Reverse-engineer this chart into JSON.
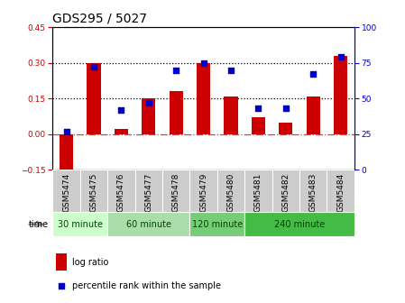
{
  "title": "GDS295 / 5027",
  "samples": [
    "GSM5474",
    "GSM5475",
    "GSM5476",
    "GSM5477",
    "GSM5478",
    "GSM5479",
    "GSM5480",
    "GSM5481",
    "GSM5482",
    "GSM5483",
    "GSM5484"
  ],
  "log_ratio": [
    -0.18,
    0.3,
    0.02,
    0.15,
    0.18,
    0.3,
    0.16,
    0.07,
    0.05,
    0.16,
    0.33
  ],
  "percentile": [
    27,
    72,
    42,
    47,
    70,
    75,
    70,
    43,
    43,
    67,
    79
  ],
  "ylim_left": [
    -0.15,
    0.45
  ],
  "ylim_right": [
    0,
    100
  ],
  "yticks_left": [
    -0.15,
    0.0,
    0.15,
    0.3,
    0.45
  ],
  "yticks_right": [
    0,
    25,
    50,
    75,
    100
  ],
  "hlines": [
    0.15,
    0.3
  ],
  "bar_color": "#cc0000",
  "dot_color": "#0000cc",
  "zero_line_color": "#cc4444",
  "grid_color": "#000000",
  "time_groups": [
    {
      "label": "30 minute",
      "spans": [
        0,
        1
      ],
      "color": "#ccffcc"
    },
    {
      "label": "60 minute",
      "spans": [
        2,
        3,
        4
      ],
      "color": "#aaddaa"
    },
    {
      "label": "120 minute",
      "spans": [
        5,
        6
      ],
      "color": "#77cc77"
    },
    {
      "label": "240 minute",
      "spans": [
        7,
        8,
        9,
        10
      ],
      "color": "#44bb44"
    }
  ],
  "time_label": "time",
  "legend_bar_label": "log ratio",
  "legend_dot_label": "percentile rank within the sample",
  "title_fontsize": 10,
  "tick_fontsize": 6.5,
  "label_fontsize": 8,
  "xtick_bg": "#cccccc"
}
